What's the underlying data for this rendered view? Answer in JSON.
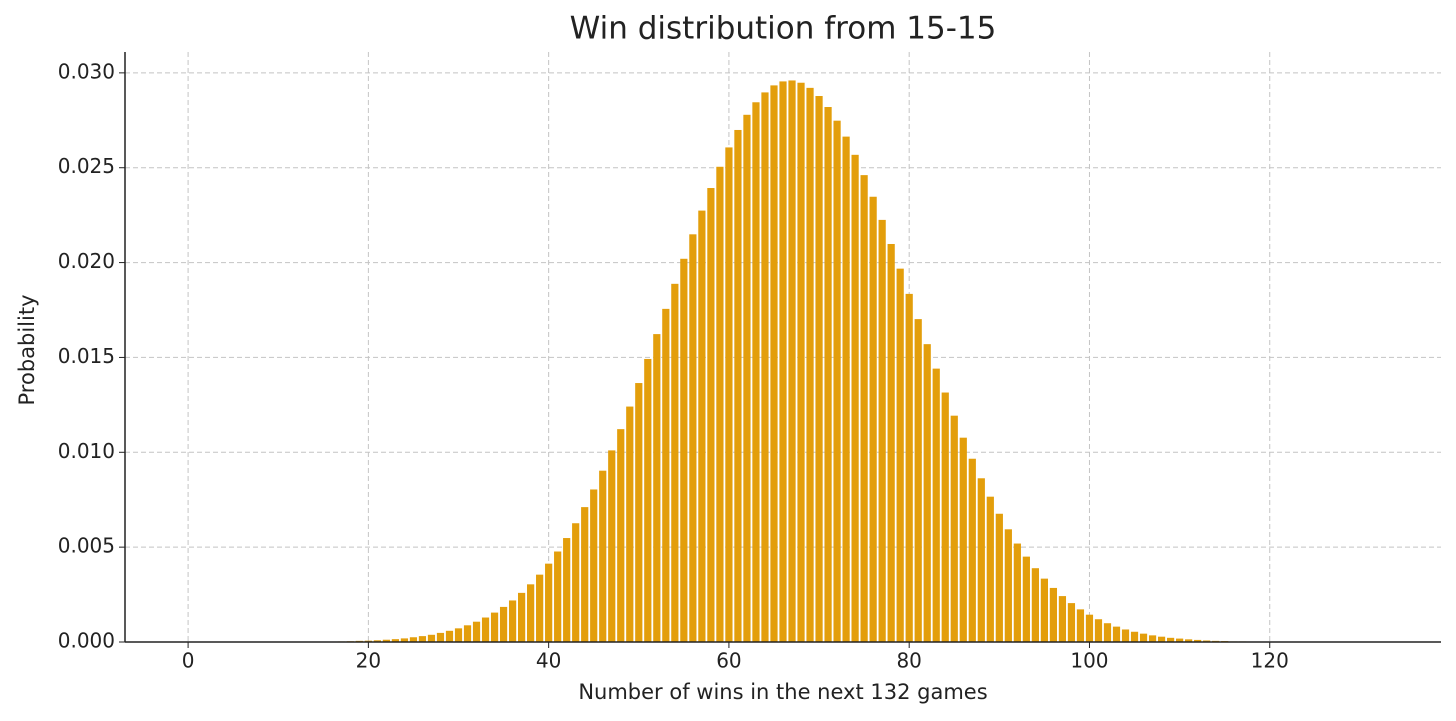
{
  "chart_data": {
    "type": "bar",
    "title": "Win distribution from 15-15",
    "x_label": "Number of wins in the next 132 games",
    "y_label": "Probability",
    "x": [
      0,
      1,
      2,
      3,
      4,
      5,
      6,
      7,
      8,
      9,
      10,
      11,
      12,
      13,
      14,
      15,
      16,
      17,
      18,
      19,
      20,
      21,
      22,
      23,
      24,
      25,
      26,
      27,
      28,
      29,
      30,
      31,
      32,
      33,
      34,
      35,
      36,
      37,
      38,
      39,
      40,
      41,
      42,
      43,
      44,
      45,
      46,
      47,
      48,
      49,
      50,
      51,
      52,
      53,
      54,
      55,
      56,
      57,
      58,
      59,
      60,
      61,
      62,
      63,
      64,
      65,
      66,
      67,
      68,
      69,
      70,
      71,
      72,
      73,
      74,
      75,
      76,
      77,
      78,
      79,
      80,
      81,
      82,
      83,
      84,
      85,
      86,
      87,
      88,
      89,
      90,
      91,
      92,
      93,
      94,
      95,
      96,
      97,
      98,
      99,
      100,
      101,
      102,
      103,
      104,
      105,
      106,
      107,
      108,
      109,
      110,
      111,
      112,
      113,
      114,
      115,
      116,
      117,
      118,
      119,
      120,
      121,
      122,
      123,
      124,
      125,
      126,
      127,
      128,
      129,
      130,
      131,
      132
    ],
    "values": [
      0,
      0,
      0,
      0,
      0,
      0,
      0,
      0,
      0,
      0,
      0,
      0,
      0,
      0,
      0,
      0,
      2e-05,
      3e-05,
      4e-05,
      6e-05,
      7e-05,
      9e-05,
      0.00012,
      0.00015,
      0.00019,
      0.00025,
      0.00031,
      0.00038,
      0.00048,
      0.00059,
      0.00072,
      0.00088,
      0.00107,
      0.00129,
      0.00155,
      0.00185,
      0.00219,
      0.00259,
      0.00304,
      0.00355,
      0.00413,
      0.00477,
      0.00548,
      0.00626,
      0.00711,
      0.00804,
      0.00903,
      0.0101,
      0.01122,
      0.01241,
      0.01365,
      0.01492,
      0.01623,
      0.01756,
      0.01888,
      0.0202,
      0.02149,
      0.02274,
      0.02393,
      0.02505,
      0.02607,
      0.02699,
      0.02779,
      0.02845,
      0.02897,
      0.02934,
      0.02955,
      0.0296,
      0.02948,
      0.02921,
      0.02878,
      0.0282,
      0.02748,
      0.02664,
      0.02568,
      0.02461,
      0.02347,
      0.02225,
      0.02098,
      0.01968,
      0.01835,
      0.01702,
      0.0157,
      0.01441,
      0.01315,
      0.01193,
      0.01077,
      0.00966,
      0.00863,
      0.00766,
      0.00676,
      0.00594,
      0.00519,
      0.0045,
      0.00389,
      0.00334,
      0.00285,
      0.00242,
      0.00205,
      0.00172,
      0.00144,
      0.0012,
      0.00099,
      0.00081,
      0.00066,
      0.00054,
      0.00044,
      0.00035,
      0.00028,
      0.00022,
      0.00018,
      0.00014,
      0.00011,
      8e-05,
      6e-05,
      5e-05,
      3e-05,
      3e-05,
      2e-05,
      1e-05,
      1e-05,
      0,
      0,
      0,
      0,
      0,
      0,
      0,
      0,
      0,
      0,
      0,
      0
    ],
    "color": "#e39e0b",
    "xlim": [
      -7,
      139
    ],
    "xticks": [
      0,
      20,
      40,
      60,
      80,
      100,
      120
    ],
    "ylim": [
      0,
      0.0311
    ],
    "yticks": [
      {
        "value": 0,
        "label": "0.000"
      },
      {
        "value": 0.005,
        "label": "0.005"
      },
      {
        "value": 0.01,
        "label": "0.010"
      },
      {
        "value": 0.015,
        "label": "0.015"
      },
      {
        "value": 0.02,
        "label": "0.020"
      },
      {
        "value": 0.025,
        "label": "0.025"
      },
      {
        "value": 0.03,
        "label": "0.030"
      }
    ],
    "grid": true
  }
}
